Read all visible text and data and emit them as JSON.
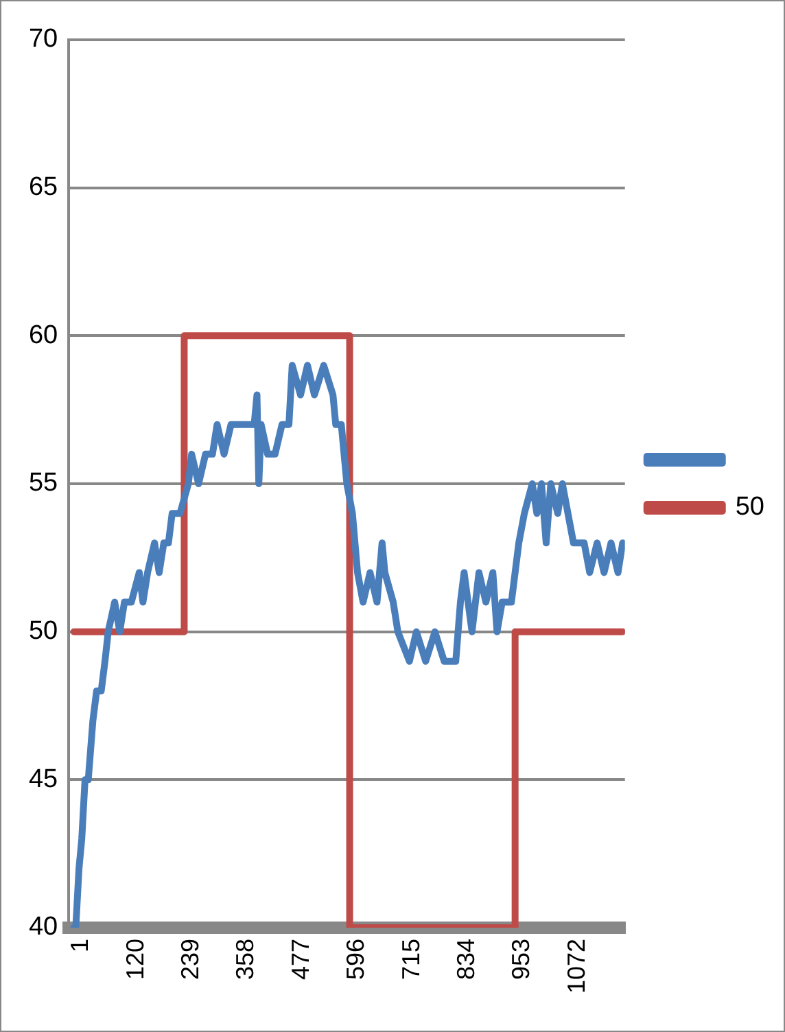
{
  "chart_data": {
    "type": "line",
    "xlim": [
      -10,
      1190
    ],
    "xticks": [
      1,
      120,
      239,
      358,
      477,
      596,
      715,
      834,
      953,
      1072
    ],
    "ylim": [
      40,
      70
    ],
    "yticks": [
      40,
      45,
      50,
      55,
      60,
      65,
      70
    ],
    "grid": "y",
    "legend": "right",
    "marker": "none",
    "line_style": "solid",
    "series": [
      {
        "color": "#4a7ebb",
        "x": [
          1,
          5,
          12,
          18,
          25,
          32,
          42,
          50,
          60,
          68,
          75,
          89,
          100,
          110,
          125,
          142,
          150,
          160,
          175,
          185,
          195,
          205,
          213,
          230,
          248,
          255,
          270,
          285,
          300,
          310,
          325,
          340,
          360,
          390,
          396,
          400,
          405,
          419,
          435,
          450,
          465,
          472,
          490,
          505,
          520,
          540,
          560,
          566,
          578,
          590,
          602,
          613,
          625,
          640,
          655,
          666,
          672,
          690,
          700,
          725,
          740,
          760,
          780,
          800,
          825,
          835,
          843,
          860,
          875,
          890,
          905,
          914,
          925,
          945,
          961,
          973,
          990,
          1000,
          1010,
          1020,
          1030,
          1045,
          1055,
          1067,
          1079,
          1102,
          1114,
          1130,
          1145,
          1160,
          1175,
          1185
        ],
        "values": [
          40,
          40,
          42,
          43,
          45,
          45,
          47,
          48,
          48,
          49,
          50,
          51,
          50,
          51,
          51,
          52,
          51,
          52,
          53,
          52,
          53,
          53,
          54,
          54,
          55,
          56,
          55,
          56,
          56,
          57,
          56,
          57,
          57,
          57,
          58,
          55,
          57,
          56,
          56,
          57,
          57,
          59,
          58,
          59,
          58,
          59,
          58,
          57,
          57,
          55,
          54,
          52,
          51,
          52,
          51,
          53,
          52,
          51,
          50,
          49,
          50,
          49,
          50,
          49,
          49,
          51,
          52,
          50,
          52,
          51,
          52,
          50,
          51,
          51,
          53,
          54,
          55,
          54,
          55,
          53,
          55,
          54,
          55,
          54,
          53,
          53,
          52,
          53,
          52,
          53,
          52,
          53
        ]
      },
      {
        "name": "50",
        "type": "step",
        "color": "#be4b48",
        "x": [
          1,
          239,
          596,
          953,
          1185
        ],
        "values": [
          50,
          60,
          40,
          50,
          50
        ]
      }
    ]
  }
}
